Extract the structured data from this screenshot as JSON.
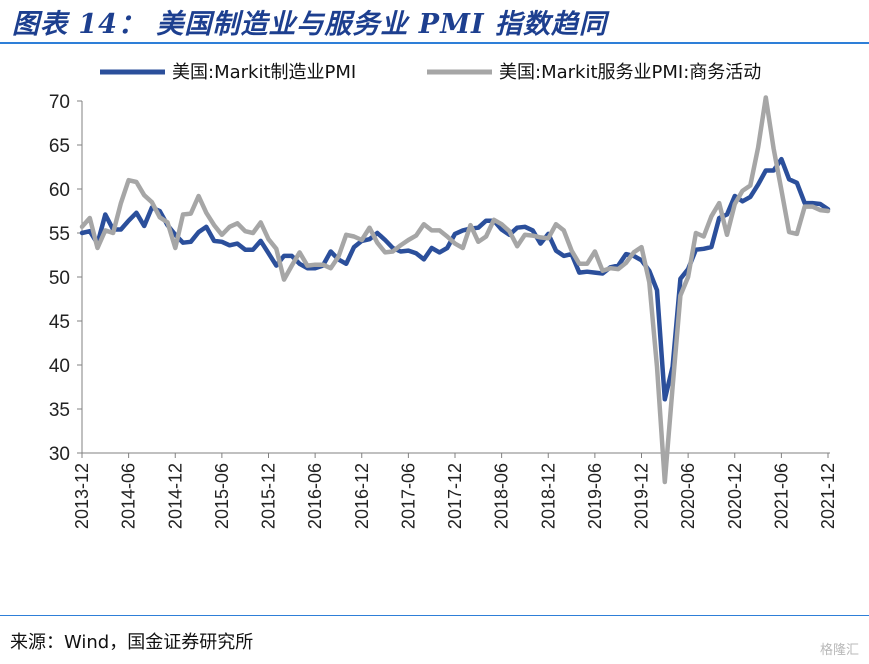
{
  "title": "图表 14： 美国制造业与服务业 PMI 指数趋同",
  "source": "来源：Wind，国金证券研究所",
  "watermark": "格隆汇",
  "colors": {
    "manufacturing": "#2b4f9b",
    "services": "#a6a6a6",
    "accent": "#2e7fd8"
  },
  "chart_data": {
    "type": "line",
    "title": "",
    "xlabel": "",
    "ylabel": "",
    "ylim": [
      30,
      70
    ],
    "yticks": [
      30,
      35,
      40,
      45,
      50,
      55,
      60,
      65,
      70
    ],
    "grid": false,
    "legend_position": "top",
    "x_start": "2013-12",
    "x_tick_labels": [
      "2013-12",
      "2014-06",
      "2014-12",
      "2015-06",
      "2015-12",
      "2016-06",
      "2016-12",
      "2017-06",
      "2017-12",
      "2018-06",
      "2018-12",
      "2019-06",
      "2019-12",
      "2020-06",
      "2020-12",
      "2021-06",
      "2021-12"
    ],
    "series": [
      {
        "name": "美国:Markit制造业PMI",
        "key": "manufacturing",
        "values": [
          55.0,
          55.2,
          53.8,
          57.1,
          55.4,
          55.4,
          56.4,
          57.3,
          55.8,
          57.9,
          57.5,
          55.9,
          54.8,
          53.9,
          54.0,
          55.1,
          55.7,
          54.1,
          54.0,
          53.6,
          53.8,
          53.1,
          53.1,
          54.1,
          52.7,
          51.3,
          52.4,
          52.4,
          51.5,
          51.0,
          51.0,
          51.3,
          52.9,
          52.0,
          51.5,
          53.4,
          54.1,
          54.3,
          55.0,
          54.2,
          53.3,
          52.9,
          53.0,
          52.7,
          52.0,
          53.3,
          52.8,
          53.3,
          54.9,
          55.3,
          55.5,
          55.6,
          56.4,
          56.4,
          55.4,
          54.8,
          55.6,
          55.7,
          55.3,
          53.8,
          54.9,
          53.0,
          52.4,
          52.6,
          50.5,
          50.6,
          50.5,
          50.4,
          51.1,
          51.3,
          52.6,
          52.4,
          51.9,
          50.7,
          48.5,
          36.1,
          39.8,
          49.8,
          50.9,
          53.1,
          53.2,
          53.4,
          56.7,
          57.1,
          59.2,
          58.6,
          59.1,
          60.5,
          62.1,
          62.1,
          63.4,
          61.1,
          60.7,
          58.4,
          58.4,
          58.3,
          57.7
        ]
      },
      {
        "name": "美国:Markit服务业PMI:商务活动",
        "key": "services",
        "values": [
          55.7,
          56.7,
          53.3,
          55.3,
          55.0,
          58.4,
          61.0,
          60.8,
          59.3,
          58.5,
          56.8,
          56.2,
          53.3,
          57.1,
          57.2,
          59.2,
          57.3,
          55.9,
          54.8,
          55.7,
          56.1,
          55.2,
          55.0,
          56.2,
          54.3,
          53.2,
          49.7,
          51.3,
          52.8,
          51.3,
          51.4,
          51.4,
          51.0,
          52.3,
          54.8,
          54.6,
          54.2,
          55.6,
          53.9,
          52.8,
          52.9,
          53.6,
          54.2,
          54.7,
          56.0,
          55.3,
          55.3,
          54.6,
          53.8,
          53.3,
          55.9,
          54.0,
          54.6,
          56.5,
          56.0,
          55.2,
          53.5,
          54.8,
          54.7,
          54.5,
          54.4,
          56.0,
          55.3,
          53.0,
          51.5,
          51.5,
          52.9,
          50.7,
          51.0,
          50.9,
          51.6,
          52.8,
          53.4,
          49.4,
          39.8,
          26.7,
          37.5,
          47.9,
          50.0,
          55.0,
          54.6,
          56.9,
          58.4,
          54.8,
          58.3,
          59.8,
          60.4,
          64.7,
          70.4,
          64.6,
          59.9,
          55.1,
          54.9,
          58.0,
          58.0,
          57.6,
          57.5
        ]
      }
    ]
  }
}
